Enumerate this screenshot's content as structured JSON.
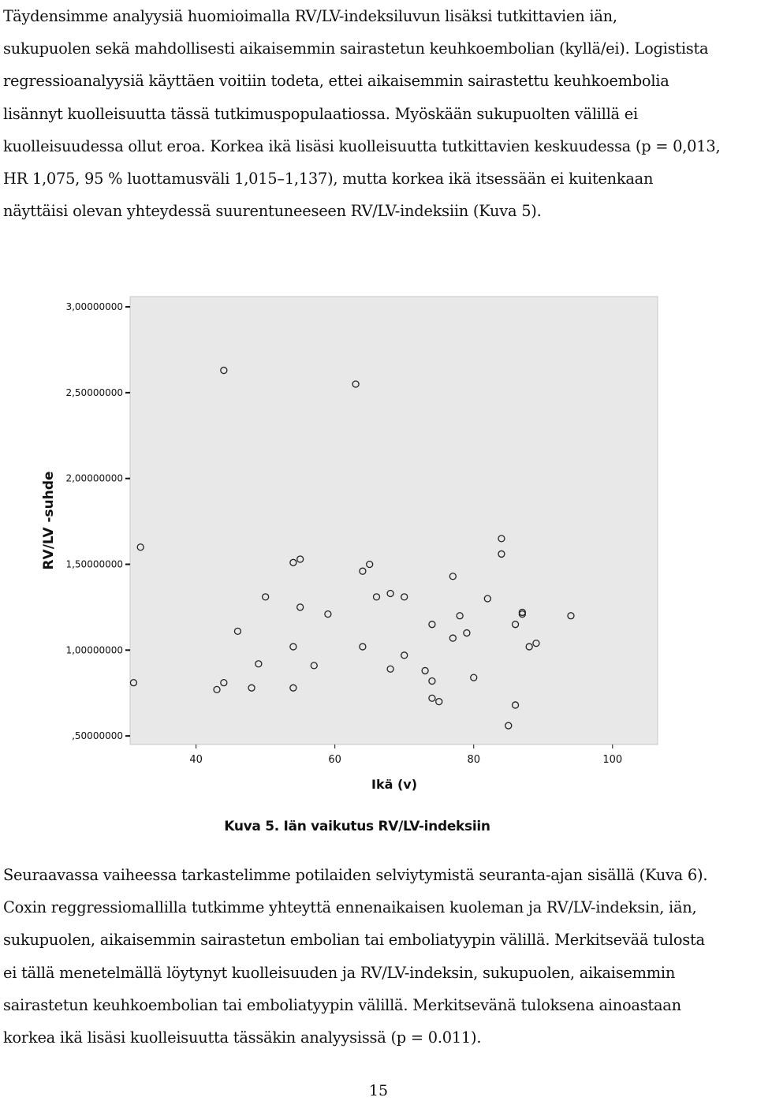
{
  "paragraph_1": [
    "Täydensimme analyysiä huomioimalla RV/LV-indeksiluvun lisäksi tutkittavien iän,",
    "sukupuolen sekä mahdollisesti aikaisemmin sairastetun keuhkoembolian (kyllä/ei). Logistista",
    "regressioanalyysiä käyttäen voitiin todeta, ettei aikaisemmin sairastettu keuhkoembolia",
    "lisännyt kuolleisuutta tässä tutkimuspopulaatiossa. Myöskään sukupuolten välillä ei",
    "kuolleisuudessa ollut eroa. Korkea ikä lisäsi kuolleisuutta tutkittavien keskuudessa (p = 0,013,",
    "HR 1,075, 95 % luottamusväli 1,015–1,137), mutta korkea ikä itsessään ei kuitenkaan",
    "näyttäisi olevan yhteydessä suurentuneeseen RV/LV-indeksiin (Kuva 5)."
  ],
  "figure_caption": "Kuva 5. Iän vaikutus RV/LV-indeksiin",
  "paragraph_2": [
    " Seuraavassa vaiheessa tarkastelimme potilaiden selviytymistä seuranta-ajan sisällä (Kuva 6).",
    "Coxin reggressiomallilla tutkimme yhteyttä ennenaikaisen kuoleman ja RV/LV-indeksin, iän,",
    "sukupuolen, aikaisemmin sairastetun embolian tai emboliatyypin välillä. Merkitsevää tulosta",
    "ei tällä menetelmällä löytynyt kuolleisuuden ja RV/LV-indeksin, sukupuolen, aikaisemmin",
    "sairastetun keuhkoembolian tai emboliatyypin välillä. Merkitsevänä tuloksena ainoastaan",
    "korkea ikä lisäsi kuolleisuutta tässäkin analyysissä (p = 0.011)."
  ],
  "page_number": "15",
  "chart_data": {
    "type": "scatter",
    "xlabel": "Ikä (v)",
    "ylabel": "RV/LV -suhde",
    "xlim": [
      30.5,
      106.5
    ],
    "ylim": [
      0.45,
      3.06
    ],
    "x_ticks": [
      40,
      60,
      80,
      100
    ],
    "x_tick_labels": [
      "40",
      "60",
      "80",
      "100"
    ],
    "y_ticks": [
      0.5,
      1.0,
      1.5,
      2.0,
      2.5,
      3.0
    ],
    "y_tick_labels": [
      ",50000000",
      "1,00000000",
      "1,50000000",
      "2,00000000",
      "2,50000000",
      "3,00000000"
    ],
    "grid": false,
    "plot_background": "#e8e8e8",
    "marker_color": "#222222",
    "points": [
      {
        "x": 44,
        "y": 2.63
      },
      {
        "x": 63,
        "y": 2.55
      },
      {
        "x": 32,
        "y": 1.6
      },
      {
        "x": 31,
        "y": 0.81
      },
      {
        "x": 43,
        "y": 0.77
      },
      {
        "x": 44,
        "y": 0.81
      },
      {
        "x": 46,
        "y": 1.11
      },
      {
        "x": 48,
        "y": 0.78
      },
      {
        "x": 49,
        "y": 0.92
      },
      {
        "x": 50,
        "y": 1.31
      },
      {
        "x": 54,
        "y": 1.51
      },
      {
        "x": 55,
        "y": 1.53
      },
      {
        "x": 55,
        "y": 1.25
      },
      {
        "x": 54,
        "y": 1.02
      },
      {
        "x": 54,
        "y": 0.78
      },
      {
        "x": 57,
        "y": 0.91
      },
      {
        "x": 59,
        "y": 1.21
      },
      {
        "x": 64,
        "y": 1.46
      },
      {
        "x": 65,
        "y": 1.5
      },
      {
        "x": 64,
        "y": 1.02
      },
      {
        "x": 66,
        "y": 1.31
      },
      {
        "x": 68,
        "y": 1.33
      },
      {
        "x": 68,
        "y": 0.89
      },
      {
        "x": 70,
        "y": 1.31
      },
      {
        "x": 70,
        "y": 0.97
      },
      {
        "x": 73,
        "y": 0.88
      },
      {
        "x": 74,
        "y": 1.15
      },
      {
        "x": 74,
        "y": 0.82
      },
      {
        "x": 74,
        "y": 0.72
      },
      {
        "x": 75,
        "y": 0.7
      },
      {
        "x": 77,
        "y": 1.43
      },
      {
        "x": 77,
        "y": 1.07
      },
      {
        "x": 78,
        "y": 1.2
      },
      {
        "x": 79,
        "y": 1.1
      },
      {
        "x": 80,
        "y": 0.84
      },
      {
        "x": 82,
        "y": 1.3
      },
      {
        "x": 84,
        "y": 1.65
      },
      {
        "x": 84,
        "y": 1.56
      },
      {
        "x": 85,
        "y": 0.56
      },
      {
        "x": 86,
        "y": 1.15
      },
      {
        "x": 86,
        "y": 0.68
      },
      {
        "x": 87,
        "y": 1.22
      },
      {
        "x": 87,
        "y": 1.21
      },
      {
        "x": 88,
        "y": 1.02
      },
      {
        "x": 89,
        "y": 1.04
      },
      {
        "x": 94,
        "y": 1.2
      }
    ]
  }
}
